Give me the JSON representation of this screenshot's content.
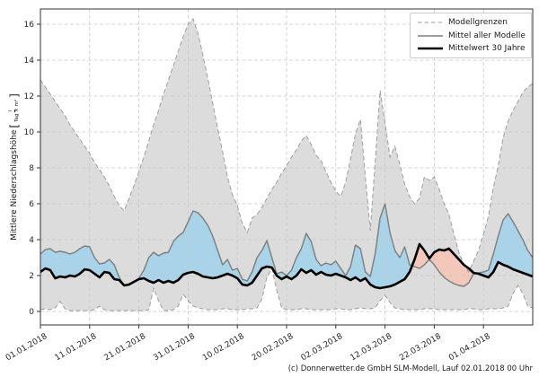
{
  "figure": {
    "footer_credit": "(c) Donnerwetter.de GmbH SLM-Modell, Lauf 02.01.2018 00 Uhr"
  },
  "axes": {
    "ylabel_text": "Mittlere Niederschlagshöhe",
    "ylabel_bracket_open": "[",
    "ylabel_unit_numerator": "l",
    "ylabel_unit_denominator": "Tag × m²",
    "ylabel_bracket_close": "]"
  },
  "legend": {
    "items": [
      {
        "label": "Modellgrenzen",
        "style": "dashed-gray"
      },
      {
        "label": "Mittel aller Modelle",
        "style": "solid-gray"
      },
      {
        "label": "Mittelwert 30 Jahre",
        "style": "solid-black-thick"
      }
    ]
  },
  "chart_data": {
    "type": "line",
    "title": "",
    "xlabel": "",
    "ylabel": "Mittlere Niederschlagshöhe [l/(Tag × m²)]",
    "x_unit": "Tage ab 01.01.2018",
    "x_range_days": [
      0,
      100
    ],
    "x_tick_step_days": 10,
    "x_tick_labels": [
      "01.01.2018",
      "11.01.2018",
      "21.01.2018",
      "31.01.2018",
      "10.02.2018",
      "20.02.2018",
      "02.03.2018",
      "12.03.2018",
      "22.03.2018",
      "01.04.2018"
    ],
    "y_tick_values": [
      0,
      2,
      4,
      6,
      8,
      10,
      12,
      14,
      16
    ],
    "ylim": [
      0,
      16.85
    ],
    "grid": true,
    "legend_position": "upper right",
    "colors": {
      "band_fill": "#dcdcdc",
      "above_fill": "#a8d3e8",
      "below_fill": "#f3c7b9",
      "bounds_line": "#9e9e9e",
      "mean_line": "#7d7d7d",
      "mean30_line": "#000000",
      "grid_line": "#c9c9c9",
      "spine": "#333333",
      "tick_text": "#262626"
    },
    "series": [
      {
        "key": "upper",
        "name": "Modellgrenzen (obere Grenze)",
        "style": "dashed",
        "values": [
          12.9,
          12.5,
          12.1,
          11.7,
          11.3,
          10.9,
          10.4,
          10.0,
          9.6,
          9.2,
          8.8,
          8.3,
          7.9,
          7.5,
          7.0,
          6.4,
          5.9,
          5.6,
          6.3,
          7.0,
          7.8,
          8.6,
          9.5,
          10.4,
          11.2,
          12.1,
          12.9,
          13.7,
          14.5,
          15.3,
          16.0,
          16.3,
          15.5,
          14.3,
          13.0,
          11.6,
          10.2,
          8.9,
          7.5,
          6.5,
          5.9,
          4.9,
          4.4,
          5.2,
          5.4,
          5.8,
          6.3,
          6.8,
          7.2,
          7.7,
          8.1,
          8.6,
          9.0,
          9.5,
          9.8,
          9.3,
          8.7,
          8.4,
          7.8,
          7.2,
          6.7,
          6.4,
          7.2,
          8.5,
          9.9,
          10.7,
          7.5,
          4.5,
          8.3,
          12.3,
          10.5,
          8.6,
          9.2,
          8.2,
          7.1,
          6.4,
          6.0,
          6.3,
          7.5,
          7.3,
          7.5,
          6.8,
          6.0,
          5.4,
          4.3,
          3.3,
          2.6,
          2.2,
          2.8,
          3.4,
          4.3,
          5.3,
          6.9,
          8.1,
          9.7,
          10.6,
          11.2,
          11.7,
          12.2,
          12.5,
          12.7
        ]
      },
      {
        "key": "lower",
        "name": "Modellgrenzen (untere Grenze)",
        "style": "dashed",
        "values": [
          0.1,
          0.15,
          0.1,
          0.2,
          0.55,
          0.15,
          0.05,
          0.05,
          0.05,
          0.05,
          0.05,
          0.1,
          0.3,
          0.1,
          0.05,
          0.05,
          0.05,
          0.05,
          0.05,
          0.05,
          0.05,
          0.05,
          0.1,
          1.3,
          0.6,
          0.05,
          0.05,
          0.1,
          0.3,
          0.95,
          0.6,
          0.3,
          0.2,
          0.15,
          0.1,
          0.1,
          0.1,
          0.15,
          0.15,
          0.1,
          0.1,
          0.1,
          0.15,
          0.15,
          0.2,
          0.7,
          1.9,
          2.4,
          1.2,
          0.2,
          0.1,
          0.1,
          0.1,
          0.15,
          0.15,
          0.1,
          0.1,
          0.1,
          0.1,
          0.1,
          0.15,
          0.15,
          0.1,
          0.1,
          0.15,
          0.2,
          0.15,
          0.15,
          0.2,
          0.6,
          0.9,
          0.5,
          0.2,
          0.15,
          0.1,
          0.1,
          0.1,
          0.1,
          0.15,
          0.15,
          0.15,
          0.1,
          0.1,
          0.1,
          0.1,
          0.1,
          0.1,
          0.15,
          0.15,
          0.1,
          0.1,
          0.15,
          0.15,
          0.15,
          0.2,
          0.3,
          1.0,
          1.45,
          1.0,
          0.3,
          0.2
        ]
      },
      {
        "key": "mean",
        "name": "Mittel aller Modelle",
        "style": "solid",
        "values": [
          3.2,
          3.45,
          3.5,
          3.3,
          3.35,
          3.3,
          3.2,
          3.3,
          3.5,
          3.65,
          3.6,
          3.0,
          2.65,
          2.7,
          2.9,
          2.6,
          1.9,
          1.45,
          1.5,
          1.65,
          1.85,
          2.3,
          3.0,
          3.3,
          3.1,
          3.25,
          3.3,
          3.9,
          4.2,
          4.4,
          5.0,
          5.6,
          5.5,
          5.2,
          4.8,
          4.2,
          3.4,
          2.6,
          2.9,
          2.3,
          2.4,
          1.8,
          1.7,
          2.2,
          3.0,
          3.4,
          3.95,
          3.0,
          2.1,
          2.2,
          2.0,
          2.3,
          3.0,
          3.5,
          4.35,
          3.9,
          2.9,
          2.55,
          2.7,
          2.6,
          2.8,
          2.4,
          2.0,
          2.5,
          3.7,
          3.5,
          2.2,
          1.95,
          3.2,
          5.2,
          6.0,
          4.4,
          3.4,
          3.0,
          3.6,
          2.6,
          2.5,
          2.4,
          2.6,
          2.9,
          2.6,
          2.2,
          1.9,
          1.7,
          1.55,
          1.45,
          1.4,
          1.6,
          2.1,
          2.15,
          2.2,
          2.3,
          3.2,
          4.2,
          5.1,
          5.45,
          5.0,
          4.5,
          4.0,
          3.4,
          3.0
        ]
      },
      {
        "key": "mean30",
        "name": "Mittelwert 30 Jahre",
        "style": "solid-thick",
        "values": [
          2.2,
          2.4,
          2.3,
          1.85,
          1.95,
          1.9,
          2.0,
          1.95,
          2.1,
          2.35,
          2.3,
          2.1,
          1.9,
          2.2,
          2.15,
          1.8,
          1.75,
          1.45,
          1.5,
          1.65,
          1.8,
          1.85,
          1.7,
          1.6,
          1.75,
          1.6,
          1.7,
          1.6,
          1.75,
          2.05,
          2.15,
          2.2,
          2.1,
          1.95,
          1.9,
          1.85,
          1.9,
          2.0,
          2.1,
          2.0,
          1.85,
          1.5,
          1.45,
          1.6,
          2.0,
          2.4,
          2.5,
          2.45,
          2.0,
          1.8,
          1.95,
          1.8,
          2.0,
          2.35,
          2.15,
          2.3,
          2.05,
          2.2,
          2.05,
          2.0,
          2.1,
          2.0,
          1.9,
          1.75,
          1.9,
          1.7,
          1.85,
          1.5,
          1.35,
          1.3,
          1.35,
          1.4,
          1.5,
          1.65,
          1.8,
          2.2,
          2.9,
          3.75,
          3.4,
          2.95,
          3.3,
          3.45,
          3.4,
          3.5,
          3.2,
          2.9,
          2.6,
          2.4,
          2.15,
          2.1,
          2.0,
          1.9,
          2.2,
          2.75,
          2.6,
          2.5,
          2.35,
          2.25,
          2.15,
          2.05,
          1.95
        ]
      }
    ],
    "fills": [
      {
        "name": "Modellgrenzen-Band",
        "between": [
          "upper",
          "lower"
        ],
        "color_key": "band_fill"
      },
      {
        "name": "Mittel über Mittelwert 30 Jahre",
        "between": [
          "mean",
          "mean30"
        ],
        "when": "mean>mean30",
        "color_key": "above_fill"
      },
      {
        "name": "Mittel unter Mittelwert 30 Jahre",
        "between": [
          "mean30",
          "mean"
        ],
        "when": "mean<mean30",
        "color_key": "below_fill"
      }
    ]
  }
}
